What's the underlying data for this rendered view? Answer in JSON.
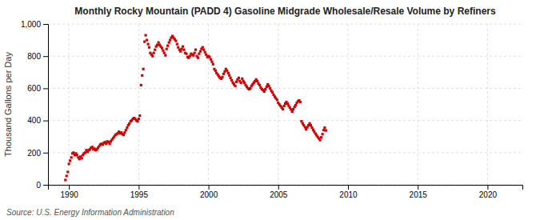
{
  "chart_data": {
    "type": "scatter",
    "title": "Monthly Rocky Mountain (PADD 4) Gasoline Midgrade Wholesale/Resale Volume by Refiners",
    "ylabel": "Thousand Gallons per Day",
    "annotations": [
      "Source: U.S. Energy Information Administration"
    ],
    "color": "#CC0000",
    "marker": "square",
    "grid": true,
    "xlim": [
      1988.5,
      2022.5
    ],
    "ylim": [
      0,
      1000
    ],
    "xticks": [
      1990,
      1995,
      2000,
      2005,
      2010,
      2015,
      2020
    ],
    "yticks": [
      0,
      200,
      400,
      600,
      800,
      {
        "value": 1000,
        "label": "1,000"
      }
    ],
    "x": [
      1989.75,
      1989.83,
      1989.92,
      1990.0,
      1990.08,
      1990.17,
      1990.25,
      1990.33,
      1990.42,
      1990.5,
      1990.58,
      1990.67,
      1990.75,
      1990.83,
      1990.92,
      1991.0,
      1991.08,
      1991.17,
      1991.25,
      1991.33,
      1991.42,
      1991.5,
      1991.58,
      1991.67,
      1991.75,
      1991.83,
      1991.92,
      1992.0,
      1992.08,
      1992.17,
      1992.25,
      1992.33,
      1992.42,
      1992.5,
      1992.58,
      1992.67,
      1992.75,
      1992.83,
      1992.92,
      1993.0,
      1993.08,
      1993.17,
      1993.25,
      1993.33,
      1993.42,
      1993.5,
      1993.58,
      1993.67,
      1993.75,
      1993.83,
      1993.92,
      1994.0,
      1994.08,
      1994.17,
      1994.25,
      1994.33,
      1994.42,
      1994.5,
      1994.58,
      1994.67,
      1994.75,
      1994.83,
      1994.92,
      1995.0,
      1995.08,
      1995.17,
      1995.25,
      1995.33,
      1995.42,
      1995.5,
      1995.58,
      1995.67,
      1995.75,
      1995.83,
      1995.92,
      1996.0,
      1996.08,
      1996.17,
      1996.25,
      1996.33,
      1996.42,
      1996.5,
      1996.58,
      1996.67,
      1996.75,
      1996.83,
      1996.92,
      1997.0,
      1997.08,
      1997.17,
      1997.25,
      1997.33,
      1997.42,
      1997.5,
      1997.58,
      1997.67,
      1997.75,
      1997.83,
      1997.92,
      1998.0,
      1998.08,
      1998.17,
      1998.25,
      1998.33,
      1998.42,
      1998.5,
      1998.58,
      1998.67,
      1998.75,
      1998.83,
      1998.92,
      1999.0,
      1999.08,
      1999.17,
      1999.25,
      1999.33,
      1999.42,
      1999.5,
      1999.58,
      1999.67,
      1999.75,
      1999.83,
      1999.92,
      2000.0,
      2000.08,
      2000.17,
      2000.25,
      2000.33,
      2000.42,
      2000.5,
      2000.58,
      2000.67,
      2000.75,
      2000.83,
      2000.92,
      2001.0,
      2001.08,
      2001.17,
      2001.25,
      2001.33,
      2001.42,
      2001.5,
      2001.58,
      2001.67,
      2001.75,
      2001.83,
      2001.92,
      2002.0,
      2002.08,
      2002.17,
      2002.25,
      2002.33,
      2002.42,
      2002.5,
      2002.58,
      2002.67,
      2002.75,
      2002.83,
      2002.92,
      2003.0,
      2003.08,
      2003.17,
      2003.25,
      2003.33,
      2003.42,
      2003.5,
      2003.58,
      2003.67,
      2003.75,
      2003.83,
      2003.92,
      2004.0,
      2004.08,
      2004.17,
      2004.25,
      2004.33,
      2004.42,
      2004.5,
      2004.58,
      2004.67,
      2004.75,
      2004.83,
      2004.92,
      2005.0,
      2005.08,
      2005.17,
      2005.25,
      2005.33,
      2005.42,
      2005.5,
      2005.58,
      2005.67,
      2005.75,
      2005.83,
      2005.92,
      2006.0,
      2006.08,
      2006.17,
      2006.25,
      2006.33,
      2006.42,
      2006.5,
      2006.58,
      2006.67,
      2006.75,
      2006.83,
      2006.92,
      2007.0,
      2007.08,
      2007.17,
      2007.25,
      2007.33,
      2007.42,
      2007.5,
      2007.58,
      2007.67,
      2007.75,
      2007.83,
      2007.92,
      2008.0,
      2008.08,
      2008.17,
      2008.25,
      2008.33,
      2008.42
    ],
    "values": [
      30,
      55,
      80,
      130,
      150,
      170,
      195,
      200,
      185,
      195,
      185,
      170,
      160,
      175,
      165,
      185,
      195,
      200,
      215,
      205,
      215,
      220,
      230,
      235,
      220,
      225,
      215,
      220,
      230,
      240,
      250,
      255,
      250,
      260,
      265,
      255,
      270,
      265,
      255,
      270,
      280,
      290,
      300,
      310,
      315,
      320,
      330,
      320,
      325,
      315,
      310,
      325,
      340,
      355,
      370,
      380,
      395,
      400,
      410,
      415,
      410,
      400,
      395,
      410,
      430,
      620,
      680,
      720,
      890,
      930,
      900,
      875,
      855,
      820,
      810,
      800,
      820,
      840,
      860,
      870,
      885,
      870,
      860,
      850,
      835,
      820,
      805,
      845,
      865,
      885,
      900,
      915,
      925,
      915,
      905,
      895,
      875,
      855,
      840,
      830,
      845,
      860,
      840,
      820,
      815,
      795,
      790,
      800,
      815,
      810,
      805,
      820,
      840,
      800,
      790,
      815,
      830,
      845,
      855,
      840,
      825,
      810,
      795,
      800,
      795,
      780,
      765,
      750,
      720,
      710,
      695,
      685,
      675,
      665,
      660,
      670,
      690,
      705,
      720,
      710,
      695,
      680,
      665,
      650,
      635,
      625,
      615,
      640,
      655,
      665,
      645,
      635,
      660,
      645,
      635,
      620,
      610,
      600,
      595,
      600,
      615,
      625,
      635,
      645,
      655,
      645,
      630,
      620,
      605,
      595,
      588,
      580,
      595,
      610,
      625,
      615,
      600,
      585,
      575,
      560,
      548,
      538,
      528,
      510,
      500,
      490,
      480,
      470,
      490,
      505,
      515,
      505,
      492,
      480,
      468,
      455,
      470,
      485,
      495,
      510,
      520,
      525,
      515,
      395,
      382,
      370,
      358,
      345,
      358,
      370,
      382,
      370,
      356,
      342,
      330,
      318,
      308,
      298,
      288,
      278,
      295,
      315,
      340,
      355,
      338
    ]
  }
}
